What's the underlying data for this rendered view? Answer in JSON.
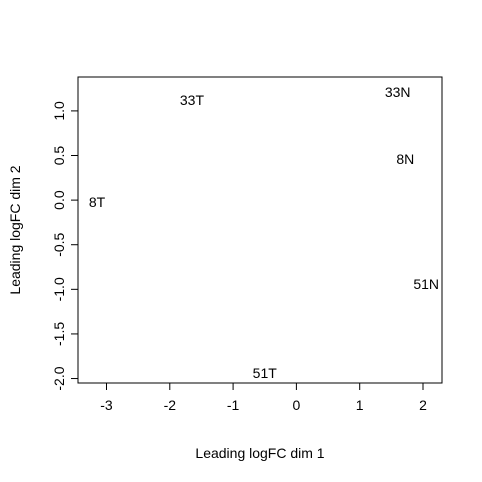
{
  "chart_data": {
    "type": "scatter",
    "xlabel": "Leading logFC dim 1",
    "ylabel": "Leading logFC dim 2",
    "xlim": [
      -3.45,
      2.3
    ],
    "ylim": [
      -2.05,
      1.38
    ],
    "xticks": [
      -3,
      -2,
      -1,
      0,
      1,
      2
    ],
    "yticks": [
      -2.0,
      -1.5,
      -1.0,
      -0.5,
      0.0,
      0.5,
      1.0
    ],
    "xtick_labels": [
      "-3",
      "-2",
      "-1",
      "0",
      "1",
      "2"
    ],
    "ytick_labels": [
      "-2.0",
      "-1.5",
      "-1.0",
      "-0.5",
      "0.0",
      "0.5",
      "1.0"
    ],
    "grid": false,
    "points": [
      {
        "label": "33T",
        "x": -1.65,
        "y": 1.12
      },
      {
        "label": "33N",
        "x": 1.6,
        "y": 1.21
      },
      {
        "label": "8N",
        "x": 1.72,
        "y": 0.46
      },
      {
        "label": "8T",
        "x": -3.15,
        "y": -0.02
      },
      {
        "label": "51N",
        "x": 2.05,
        "y": -0.94
      },
      {
        "label": "51T",
        "x": -0.5,
        "y": -1.94
      }
    ]
  }
}
